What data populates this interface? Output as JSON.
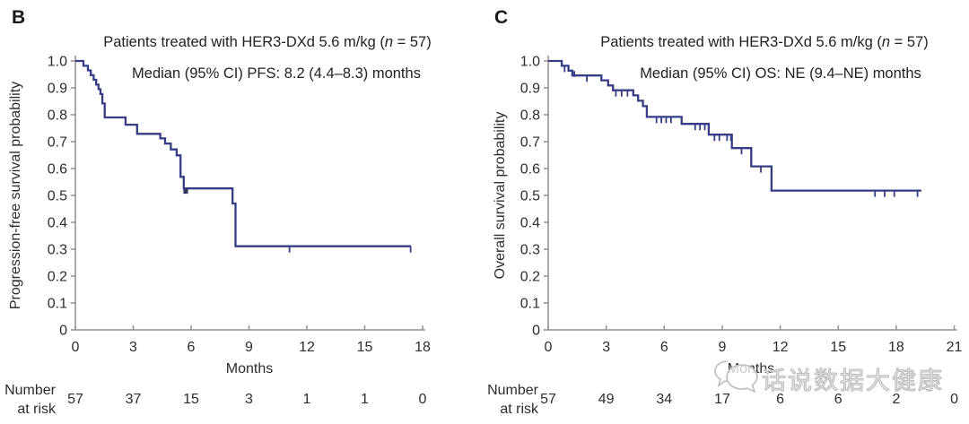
{
  "page": {
    "background": "#ffffff"
  },
  "watermark": {
    "text": "话说数据大健康",
    "logo_icon": "speech-bubbles-logo",
    "color": "#bdbdbd"
  },
  "chart_data": [
    {
      "type": "line",
      "subtype": "kaplan-meier-step",
      "panel_label": "B",
      "title_prefix": "Patients treated with HER3-DXd 5.6 m/kg (",
      "title_italic": "n",
      "title_suffix": " = 57)",
      "subtitle": "Median (95% CI) PFS: 8.2 (4.4–8.3) months",
      "ylabel": "Progression-free survival probability",
      "xlabel": "Months",
      "xlim": [
        0,
        18
      ],
      "xticks": [
        0,
        3,
        6,
        9,
        12,
        15,
        18
      ],
      "ylim": [
        0,
        1.0
      ],
      "yticks": [
        "1.0",
        "0.9",
        "0.8",
        "0.7",
        "0.6",
        "0.5",
        "0.4",
        "0.3",
        "0.2",
        "0.1",
        "0"
      ],
      "grid": false,
      "legend": "none",
      "curve_color": "#373c87",
      "axis_color": "#8f8f8f",
      "steps": [
        [
          0,
          1.0
        ],
        [
          0.42,
          0.982
        ],
        [
          0.65,
          0.965
        ],
        [
          0.8,
          0.947
        ],
        [
          0.95,
          0.93
        ],
        [
          1.08,
          0.912
        ],
        [
          1.2,
          0.895
        ],
        [
          1.3,
          0.877
        ],
        [
          1.4,
          0.842
        ],
        [
          1.52,
          0.79
        ],
        [
          2.6,
          0.763
        ],
        [
          3.2,
          0.729
        ],
        [
          4.4,
          0.712
        ],
        [
          4.65,
          0.693
        ],
        [
          4.95,
          0.671
        ],
        [
          5.25,
          0.649
        ],
        [
          5.45,
          0.569
        ],
        [
          5.62,
          0.526
        ],
        [
          8.15,
          0.47
        ],
        [
          8.3,
          0.311
        ]
      ],
      "end_time": 17.4,
      "censor_ticks": [
        [
          11.1,
          0.311
        ],
        [
          17.38,
          0.311
        ]
      ],
      "censor_squares": [
        [
          5.72,
          0.515
        ]
      ],
      "median_estimate": "8.2 (4.4–8.3)",
      "number_at_risk": {
        "label_line1": "Number",
        "label_line2": "at risk",
        "times": [
          0,
          3,
          6,
          9,
          12,
          15,
          18
        ],
        "values": [
          57,
          37,
          15,
          3,
          1,
          1,
          0
        ]
      }
    },
    {
      "type": "line",
      "subtype": "kaplan-meier-step",
      "panel_label": "C",
      "title_prefix": "Patients treated with HER3-DXd 5.6 m/kg (",
      "title_italic": "n",
      "title_suffix": " = 57)",
      "subtitle": "Median (95% CI) OS: NE (9.4–NE) months",
      "ylabel": "Overall survival probability",
      "xlabel": "Months",
      "xlim": [
        0,
        21
      ],
      "xticks": [
        0,
        3,
        6,
        9,
        12,
        15,
        18,
        21
      ],
      "ylim": [
        0,
        1.0
      ],
      "yticks": [
        "1.0",
        "0.9",
        "0.8",
        "0.7",
        "0.6",
        "0.5",
        "0.4",
        "0.3",
        "0.2",
        "0.1",
        "0"
      ],
      "grid": false,
      "legend": "none",
      "curve_color": "#373c87",
      "axis_color": "#8f8f8f",
      "steps": [
        [
          0,
          1.0
        ],
        [
          0.7,
          0.982
        ],
        [
          1.05,
          0.964
        ],
        [
          1.25,
          0.946
        ],
        [
          2.75,
          0.928
        ],
        [
          3.1,
          0.909
        ],
        [
          3.35,
          0.891
        ],
        [
          4.4,
          0.872
        ],
        [
          4.65,
          0.852
        ],
        [
          4.9,
          0.832
        ],
        [
          5.1,
          0.792
        ],
        [
          6.9,
          0.766
        ],
        [
          8.3,
          0.726
        ],
        [
          9.5,
          0.676
        ],
        [
          10.5,
          0.608
        ],
        [
          11.55,
          0.518
        ]
      ],
      "end_time": 19.3,
      "censor_ticks": [
        [
          0.85,
          0.982
        ],
        [
          1.35,
          0.964
        ],
        [
          2.0,
          0.946
        ],
        [
          3.5,
          0.891
        ],
        [
          3.8,
          0.891
        ],
        [
          4.1,
          0.891
        ],
        [
          5.6,
          0.792
        ],
        [
          5.85,
          0.792
        ],
        [
          6.1,
          0.792
        ],
        [
          6.35,
          0.792
        ],
        [
          7.6,
          0.766
        ],
        [
          7.85,
          0.766
        ],
        [
          8.1,
          0.766
        ],
        [
          8.6,
          0.726
        ],
        [
          8.85,
          0.726
        ],
        [
          9.25,
          0.726
        ],
        [
          9.45,
          0.726
        ],
        [
          10.0,
          0.676
        ],
        [
          11.0,
          0.608
        ],
        [
          16.9,
          0.518
        ],
        [
          17.4,
          0.518
        ],
        [
          17.9,
          0.518
        ],
        [
          19.1,
          0.518
        ]
      ],
      "censor_squares": [],
      "median_estimate": "NE (9.4–NE)",
      "number_at_risk": {
        "label_line1": "Number",
        "label_line2": "at risk",
        "times": [
          0,
          3,
          6,
          9,
          12,
          15,
          18,
          21
        ],
        "values": [
          57,
          49,
          34,
          17,
          6,
          6,
          2,
          0
        ]
      }
    }
  ]
}
